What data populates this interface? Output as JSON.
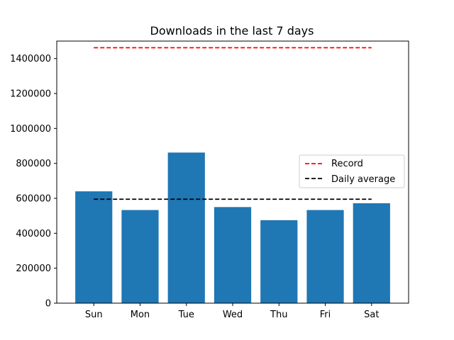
{
  "chart_data": {
    "type": "bar",
    "title": "Downloads in the last 7 days",
    "xlabel": "",
    "ylabel": "",
    "categories": [
      "Sun",
      "Mon",
      "Tue",
      "Wed",
      "Thu",
      "Fri",
      "Sat"
    ],
    "values": [
      640000,
      533000,
      862000,
      550000,
      475000,
      533000,
      572000
    ],
    "ylim": [
      0,
      1500000
    ],
    "yticks": [
      0,
      200000,
      400000,
      600000,
      800000,
      1000000,
      1200000,
      1400000
    ],
    "bar_color": "#1f77b4",
    "reference_lines": [
      {
        "name": "Record",
        "value": 1462000,
        "color": "#ff0000",
        "style": "dashed"
      },
      {
        "name": "Daily average",
        "value": 595000,
        "color": "#000000",
        "style": "dashed"
      }
    ],
    "legend": {
      "position": "center-right",
      "entries": [
        "Record",
        "Daily average"
      ]
    },
    "grid": false
  }
}
